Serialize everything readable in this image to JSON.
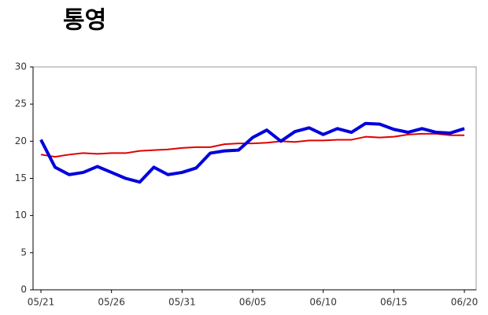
{
  "chart_data": {
    "type": "line",
    "title": "통영",
    "categories": [
      "05/21",
      null,
      null,
      null,
      null,
      "05/26",
      null,
      null,
      null,
      null,
      "05/31",
      null,
      null,
      null,
      null,
      "06/05",
      null,
      null,
      null,
      null,
      "06/10",
      null,
      null,
      null,
      null,
      "06/15",
      null,
      null,
      null,
      null,
      "06/20"
    ],
    "series": [
      {
        "color": "#0000dd",
        "values": [
          20.2,
          16.5,
          15.5,
          15.8,
          16.6,
          15.8,
          15.0,
          14.5,
          16.5,
          15.5,
          15.8,
          16.4,
          18.4,
          18.7,
          18.8,
          20.5,
          21.5,
          20.0,
          21.3,
          21.8,
          20.9,
          21.7,
          21.2,
          22.4,
          22.3,
          21.6,
          21.2,
          21.7,
          21.2,
          21.1,
          21.7
        ]
      },
      {
        "color": "#e00000",
        "values": [
          18.2,
          17.9,
          18.2,
          18.4,
          18.3,
          18.4,
          18.4,
          18.7,
          18.8,
          18.9,
          19.1,
          19.2,
          19.2,
          19.6,
          19.7,
          19.7,
          19.8,
          20.0,
          19.9,
          20.1,
          20.1,
          20.2,
          20.2,
          20.6,
          20.5,
          20.6,
          20.9,
          21.0,
          21.0,
          20.8,
          20.8
        ]
      }
    ],
    "ylim": [
      0,
      30
    ],
    "yticks": [
      0,
      5,
      10,
      15,
      20,
      25,
      30
    ],
    "grid": false
  }
}
